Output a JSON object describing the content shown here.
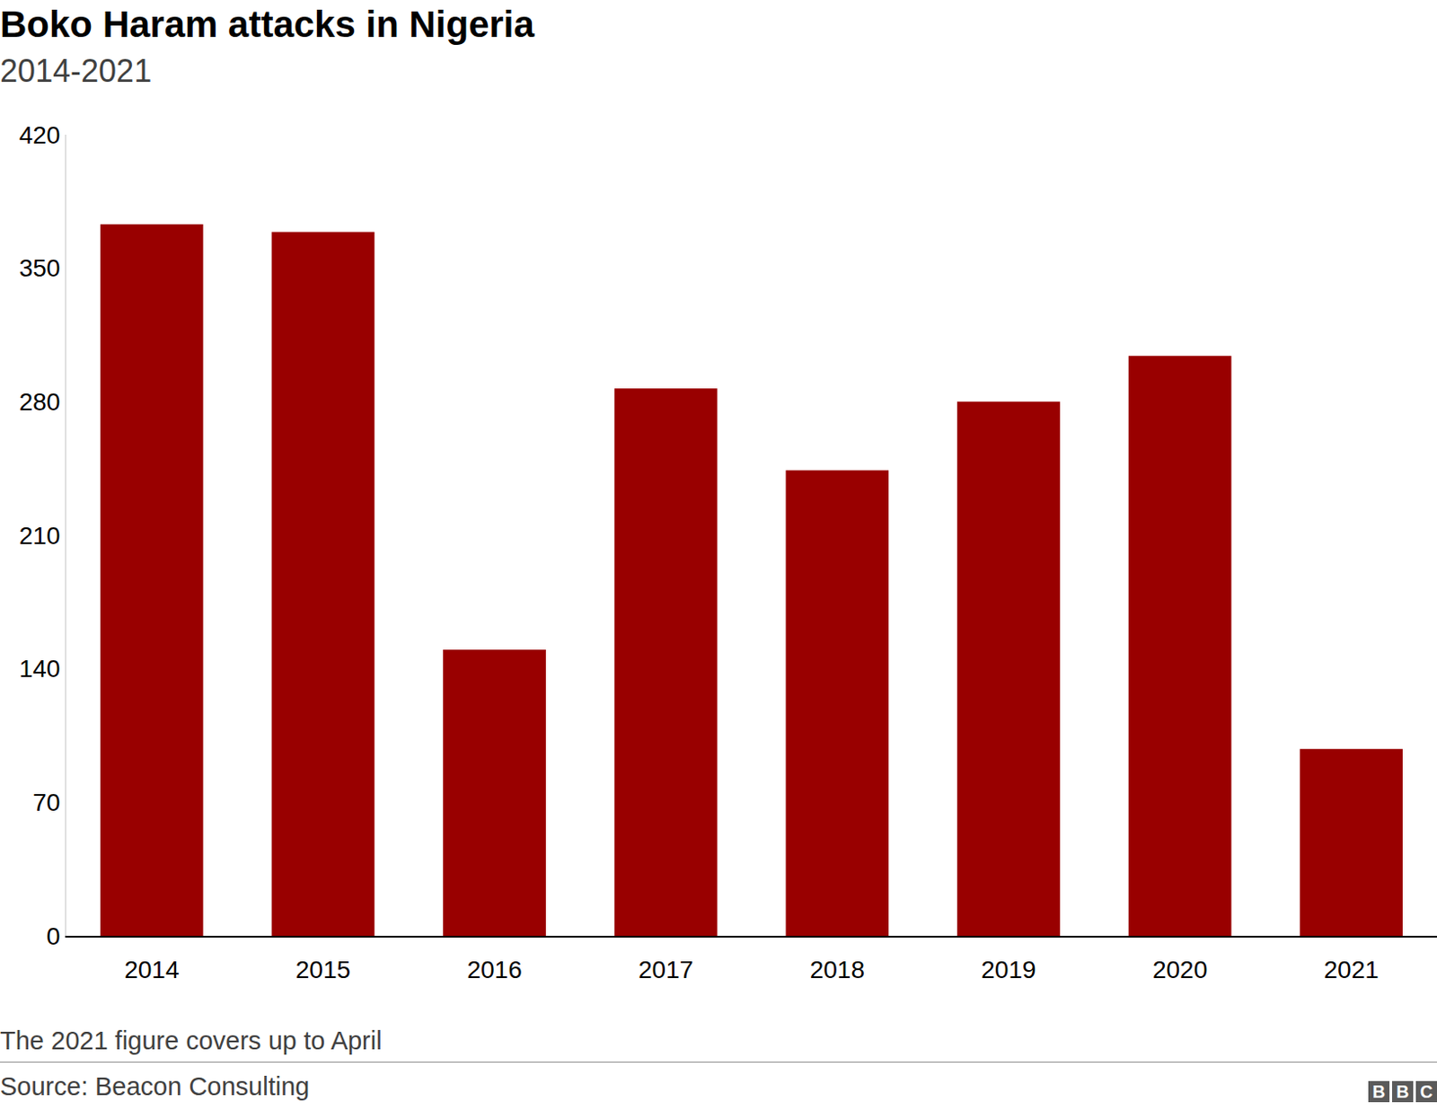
{
  "chart_data": {
    "type": "bar",
    "title": "Boko Haram attacks in Nigeria",
    "subtitle": "2014-2021",
    "categories": [
      "2014",
      "2015",
      "2016",
      "2017",
      "2018",
      "2019",
      "2020",
      "2021"
    ],
    "values": [
      373,
      369,
      150,
      287,
      244,
      280,
      304,
      98
    ],
    "color": "#990000",
    "ylim": [
      0,
      420
    ],
    "yticks": [
      0,
      70,
      140,
      210,
      280,
      350,
      420
    ],
    "grid": false,
    "note": "The 2021 figure covers up to April",
    "source": "Source: Beacon Consulting",
    "logo": "BBC"
  }
}
